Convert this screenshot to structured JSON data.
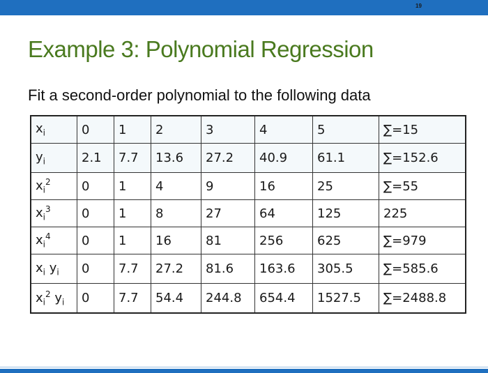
{
  "slide": {
    "number": "19",
    "title": "Example 3: Polynomial Regression",
    "subtitle": "Fit a second-order polynomial to the following data"
  },
  "table": {
    "rows": [
      {
        "label": {
          "base": "x",
          "sub": "i",
          "sup": "",
          "base2": "",
          "sub2": ""
        },
        "cells": [
          "0",
          "1",
          "2",
          "3",
          "4",
          "5",
          "∑=15"
        ]
      },
      {
        "label": {
          "base": "y",
          "sub": "i",
          "sup": "",
          "base2": "",
          "sub2": ""
        },
        "cells": [
          "2.1",
          "7.7",
          "13.6",
          "27.2",
          "40.9",
          "61.1",
          "∑=152.6"
        ]
      },
      {
        "label": {
          "base": "x",
          "sub": "i",
          "sup": "2",
          "base2": "",
          "sub2": ""
        },
        "cells": [
          "0",
          "1",
          "4",
          "9",
          "16",
          "25",
          "∑=55"
        ]
      },
      {
        "label": {
          "base": "x",
          "sub": "i",
          "sup": "3",
          "base2": "",
          "sub2": ""
        },
        "cells": [
          "0",
          "1",
          "8",
          "27",
          "64",
          "125",
          "225"
        ]
      },
      {
        "label": {
          "base": "x",
          "sub": "i",
          "sup": "4",
          "base2": "",
          "sub2": ""
        },
        "cells": [
          "0",
          "1",
          "16",
          "81",
          "256",
          "625",
          "∑=979"
        ]
      },
      {
        "label": {
          "base": "x",
          "sub": "i",
          "sup": "",
          "base2": "y",
          "sub2": "i"
        },
        "cells": [
          "0",
          "7.7",
          "27.2",
          "81.6",
          "163.6",
          "305.5",
          "∑=585.6"
        ]
      },
      {
        "label": {
          "base": "x",
          "sub": "i",
          "sup": "2",
          "base2": "y",
          "sub2": "i"
        },
        "cells": [
          "0",
          "7.7",
          "54.4",
          "244.8",
          "654.4",
          "1527.5",
          "∑=2488.8"
        ]
      }
    ]
  }
}
